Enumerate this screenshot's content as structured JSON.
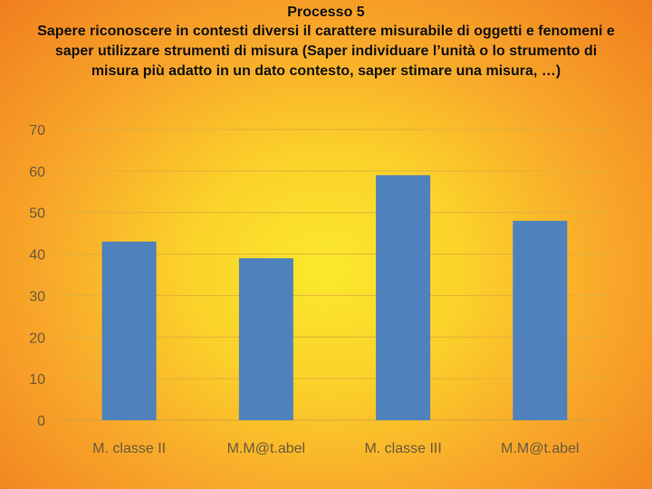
{
  "title": "Processo 5",
  "subtitle": "Sapere riconoscere in contesti diversi il carattere misurabile di oggetti e fenomeni e saper utilizzare strumenti di misura (Saper individuare l’unità o lo strumento di misura più adatto in un dato contesto, saper stimare una misura, …)",
  "colors": {
    "bar": "#4f81bd",
    "grid": "#e0b03a",
    "axis": "#d4a040"
  },
  "chart_data": {
    "type": "bar",
    "title": "",
    "xlabel": "",
    "ylabel": "",
    "categories": [
      "M. classe II",
      "M.M@t.abel",
      "M. classe III",
      "M.M@t.abel"
    ],
    "values": [
      43,
      39,
      59,
      48
    ],
    "ylim": [
      0,
      70
    ],
    "yticks": [
      0,
      10,
      20,
      30,
      40,
      50,
      60,
      70
    ],
    "grid": true,
    "legend": "none"
  }
}
